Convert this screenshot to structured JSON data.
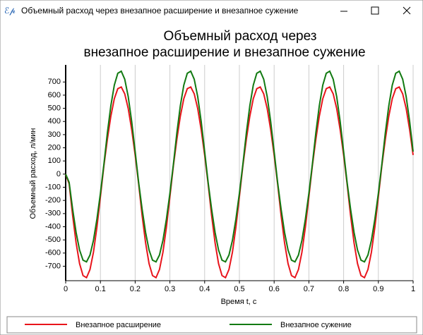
{
  "window": {
    "title": "Объемный расход через внезапное расширение и внезапное сужение"
  },
  "chart_data": {
    "type": "line",
    "title": [
      "Объемный расход через",
      "внезапное расширение и внезапное сужение"
    ],
    "x_label": "Время t, с",
    "y_label": "Объемный расход, л/мин",
    "x": [
      0,
      0.01,
      0.02,
      0.03,
      0.04,
      0.05,
      0.06,
      0.07,
      0.08,
      0.09,
      0.1,
      0.11,
      0.12,
      0.13,
      0.14,
      0.15,
      0.16,
      0.17,
      0.18,
      0.19,
      0.2,
      0.21,
      0.22,
      0.23,
      0.24,
      0.25,
      0.26,
      0.27,
      0.28,
      0.29,
      0.3,
      0.31,
      0.32,
      0.33,
      0.34,
      0.35,
      0.36,
      0.37,
      0.38,
      0.39,
      0.4,
      0.41,
      0.42,
      0.43,
      0.44,
      0.45,
      0.46,
      0.47,
      0.48,
      0.49,
      0.5,
      0.51,
      0.52,
      0.53,
      0.54,
      0.55,
      0.56,
      0.57,
      0.58,
      0.59,
      0.6,
      0.61,
      0.62,
      0.63,
      0.64,
      0.65,
      0.66,
      0.67,
      0.68,
      0.69,
      0.7,
      0.71,
      0.72,
      0.73,
      0.74,
      0.75,
      0.76,
      0.77,
      0.78,
      0.79,
      0.8,
      0.81,
      0.82,
      0.83,
      0.84,
      0.85,
      0.86,
      0.87,
      0.88,
      0.89,
      0.9,
      0.91,
      0.92,
      0.93,
      0.94,
      0.95,
      0.96,
      0.97,
      0.98,
      0.99,
      1
    ],
    "series": [
      {
        "name": "Внезапное расширение",
        "color": "#e8141b",
        "values": [
          0,
          -74,
          -314,
          -522,
          -680,
          -771,
          -787,
          -725,
          -593,
          -402,
          -172,
          63,
          264,
          440,
          573,
          649,
          662,
          610,
          499,
          338,
          145,
          -74,
          -314,
          -522,
          -680,
          -771,
          -787,
          -725,
          -593,
          -402,
          -172,
          63,
          264,
          440,
          573,
          649,
          662,
          610,
          499,
          338,
          145,
          -74,
          -314,
          -522,
          -680,
          -771,
          -787,
          -725,
          -593,
          -402,
          -172,
          63,
          264,
          440,
          573,
          649,
          662,
          610,
          499,
          338,
          145,
          -74,
          -314,
          -522,
          -680,
          -771,
          -787,
          -725,
          -593,
          -402,
          -172,
          63,
          264,
          440,
          573,
          649,
          662,
          610,
          499,
          338,
          145,
          -74,
          -314,
          -522,
          -680,
          -771,
          -787,
          -725,
          -593,
          -402,
          -172,
          63,
          264,
          440,
          573,
          649,
          662,
          610,
          499,
          338,
          145
        ]
      },
      {
        "name": "Внезапное сужение",
        "color": "#127a12",
        "values": [
          0,
          -63,
          -266,
          -443,
          -577,
          -654,
          -667,
          -615,
          -503,
          -341,
          -146,
          74,
          312,
          519,
          676,
          766,
          782,
          721,
          589,
          400,
          171,
          -63,
          -266,
          -443,
          -577,
          -654,
          -667,
          -615,
          -503,
          -341,
          -146,
          74,
          312,
          519,
          676,
          766,
          782,
          721,
          589,
          400,
          171,
          -63,
          -266,
          -443,
          -577,
          -654,
          -667,
          -615,
          -503,
          -341,
          -146,
          74,
          312,
          519,
          676,
          766,
          782,
          721,
          589,
          400,
          171,
          -63,
          -266,
          -443,
          -577,
          -654,
          -667,
          -615,
          -503,
          -341,
          -146,
          74,
          312,
          519,
          676,
          766,
          782,
          721,
          589,
          400,
          171,
          -63,
          -266,
          -443,
          -577,
          -654,
          -667,
          -615,
          -503,
          -341,
          -146,
          74,
          312,
          519,
          676,
          766,
          782,
          721,
          589,
          400,
          171
        ]
      }
    ],
    "xlim": [
      0,
      1
    ],
    "xticks": [
      0,
      0.1,
      0.2,
      0.3,
      0.4,
      0.5,
      0.6,
      0.7,
      0.8,
      0.9,
      1
    ],
    "ylim": [
      -810,
      830
    ],
    "yticks": [
      -700,
      -600,
      -500,
      -400,
      -300,
      -200,
      -100,
      0,
      100,
      200,
      300,
      400,
      500,
      600,
      700
    ],
    "grid": "x",
    "legend": "bottom"
  }
}
